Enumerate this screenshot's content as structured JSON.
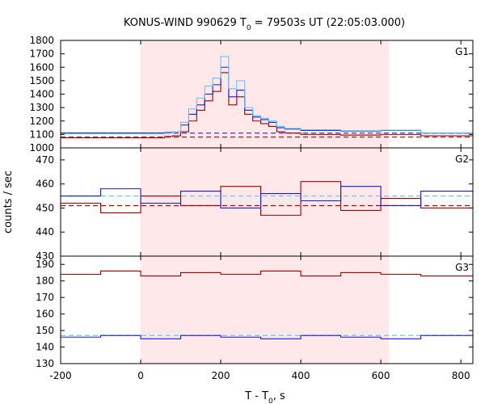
{
  "chart_data": {
    "type": "line",
    "title": "KONUS-WIND 990629 T",
    "title_sub": "0",
    "title_tail": " = 79503s UT (22:05:03.000)",
    "xlabel": "T - T",
    "xlabel_sub": "0",
    "xlabel_tail": ", s",
    "ylabel": "counts / sec",
    "xlim": [
      -200,
      830
    ],
    "xticks": [
      -200,
      0,
      200,
      400,
      600,
      800
    ],
    "xtick_labels": [
      "-200",
      "0",
      "200",
      "400",
      "600",
      "800"
    ],
    "highlight": {
      "x_start": 0,
      "x_end": 620,
      "color": "#ffe8ea"
    },
    "colors": {
      "red": "#a00000",
      "blue": "#1a1acc",
      "cyan": "#5fc8f0",
      "cyan_dashed": "#3a3acc",
      "red_dashed": "#b00000"
    },
    "panels": [
      {
        "label": "G1",
        "ylim": [
          1000,
          1800
        ],
        "yticks": [
          1000,
          1100,
          1200,
          1300,
          1400,
          1500,
          1600,
          1700,
          1800
        ],
        "ytick_labels": [
          "1000",
          "1100",
          "1200",
          "1300",
          "1400",
          "1500",
          "1600",
          "1700",
          "1800"
        ],
        "series": [
          {
            "color": "red",
            "x": [
              -200,
              60,
              80,
              100,
              120,
              140,
              160,
              180,
              200,
              220,
              240,
              260,
              280,
              300,
              320,
              340,
              360,
              400,
              500,
              600,
              700,
              830
            ],
            "y": [
              1075,
              1085,
              1090,
              1120,
              1200,
              1280,
              1350,
              1420,
              1560,
              1320,
              1380,
              1250,
              1200,
              1180,
              1160,
              1120,
              1110,
              1100,
              1095,
              1100,
              1090,
              1085
            ]
          },
          {
            "color": "blue",
            "x": [
              -200,
              60,
              80,
              100,
              120,
              140,
              160,
              180,
              200,
              220,
              240,
              260,
              280,
              300,
              320,
              340,
              360,
              400,
              500,
              600,
              700,
              830
            ],
            "y": [
              1110,
              1115,
              1120,
              1170,
              1250,
              1320,
              1400,
              1470,
              1600,
              1380,
              1430,
              1280,
              1230,
              1210,
              1190,
              1150,
              1140,
              1130,
              1125,
              1130,
              1110,
              1105
            ]
          },
          {
            "color": "cyan",
            "x": [
              -200,
              60,
              80,
              100,
              120,
              140,
              160,
              180,
              200,
              220,
              240,
              260,
              280,
              300,
              320,
              340,
              360,
              400,
              500,
              600,
              700,
              830
            ],
            "y": [
              1105,
              1110,
              1120,
              1190,
              1290,
              1370,
              1460,
              1520,
              1680,
              1440,
              1500,
              1300,
              1240,
              1220,
              1200,
              1160,
              1145,
              1135,
              1128,
              1132,
              1112,
              1108
            ]
          }
        ],
        "dashed": [
          {
            "color": "cyan_dashed",
            "y": 1110
          },
          {
            "color": "red_dashed",
            "y": 1080
          }
        ]
      },
      {
        "label": "G2",
        "ylim": [
          430,
          475
        ],
        "yticks": [
          430,
          440,
          450,
          460,
          470
        ],
        "ytick_labels": [
          "430",
          "440",
          "450",
          "460",
          "470"
        ],
        "series": [
          {
            "color": "red",
            "x": [
              -200,
              -100,
              0,
              100,
              200,
              300,
              400,
              500,
              600,
              700,
              830
            ],
            "y": [
              452,
              448,
              455,
              451,
              459,
              447,
              461,
              449,
              454,
              450,
              453
            ]
          },
          {
            "color": "blue",
            "x": [
              -200,
              -100,
              0,
              100,
              200,
              300,
              400,
              500,
              600,
              700,
              830
            ],
            "y": [
              455,
              458,
              452,
              457,
              450,
              456,
              453,
              459,
              451,
              457,
              455
            ]
          }
        ],
        "dashed": [
          {
            "color": "cyan",
            "y": 455
          },
          {
            "color": "red_dashed",
            "y": 451
          }
        ]
      },
      {
        "label": "G3",
        "ylim": [
          130,
          195
        ],
        "yticks": [
          130,
          140,
          150,
          160,
          170,
          180,
          190
        ],
        "ytick_labels": [
          "130",
          "140",
          "150",
          "160",
          "170",
          "180",
          "190"
        ],
        "series": [
          {
            "color": "red",
            "x": [
              -200,
              -100,
              0,
              100,
              200,
              300,
              400,
              500,
              600,
              700,
              830
            ],
            "y": [
              184,
              186,
              183,
              185,
              184,
              186,
              183,
              185,
              184,
              183,
              184
            ]
          },
          {
            "color": "blue",
            "x": [
              -200,
              -100,
              0,
              100,
              200,
              300,
              400,
              500,
              600,
              700,
              830
            ],
            "y": [
              146,
              147,
              145,
              147,
              146,
              145,
              147,
              146,
              145,
              147,
              146
            ]
          }
        ],
        "dashed": [
          {
            "color": "cyan",
            "y": 147
          }
        ]
      }
    ]
  }
}
